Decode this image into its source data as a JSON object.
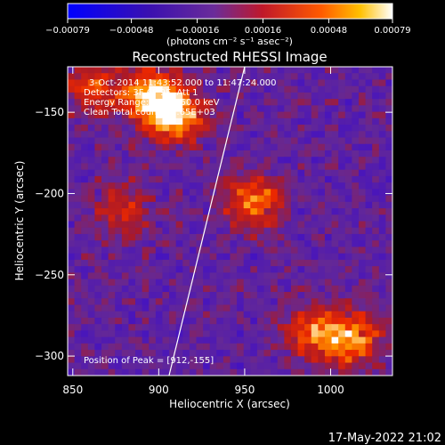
{
  "chart_data": {
    "type": "heatmap",
    "title": "Reconstructed RHESSI Image",
    "xlabel": "Heliocentric X (arcsec)",
    "ylabel": "Heliocentric Y (arcsec)",
    "xlim": [
      847,
      1036
    ],
    "ylim": [
      -312,
      -122
    ],
    "xticks": [
      850,
      900,
      950,
      1000
    ],
    "xtick_labels": [
      "850",
      "900",
      "950",
      "1000"
    ],
    "yticks": [
      -150,
      -200,
      -250,
      -300
    ],
    "ytick_labels": [
      "−150",
      "−200",
      "−250",
      "−300"
    ],
    "colorbar": {
      "range": [
        -0.00079,
        0.00079
      ],
      "ticks": [
        -0.00079,
        -0.00048,
        -0.00016,
        0.00016,
        0.00048,
        0.00079
      ],
      "tick_labels": [
        "−0.00079",
        "−0.00048",
        "−0.00016",
        "0.00016",
        "0.00048",
        "0.00079"
      ],
      "unit_label": "(photons cm⁻² s⁻¹ asec⁻²)",
      "colormap": [
        "#0000ff",
        "#5a1fd0",
        "#6a2c9a",
        "#b81d24",
        "#ff3a00",
        "#ffb000",
        "#ffffff"
      ]
    },
    "annotations": [
      "3-Oct-2014 11:43:52.000 to 11:47:24.000",
      "Detectors: 3F 6F 9F, Att 1",
      "Energy Range: 25.0 - 50.0 keV",
      "Clean     Total counts: 1.65E+03"
    ],
    "peak_label": "Position of Peak = [912,-155]",
    "peak": [
      912,
      -155
    ],
    "limb_line": [
      [
        906,
        -312
      ],
      [
        950,
        -122
      ]
    ],
    "hot_spots": [
      {
        "x": 895,
        "y": -140,
        "strength": 1.0
      },
      {
        "x": 910,
        "y": -152,
        "strength": 0.95
      },
      {
        "x": 955,
        "y": -205,
        "strength": 0.75
      },
      {
        "x": 1012,
        "y": -290,
        "strength": 0.85
      },
      {
        "x": 990,
        "y": -285,
        "strength": 0.7
      },
      {
        "x": 862,
        "y": -135,
        "strength": 0.55
      },
      {
        "x": 880,
        "y": -210,
        "strength": 0.45
      }
    ]
  },
  "timestamp": "17-May-2022 21:02"
}
